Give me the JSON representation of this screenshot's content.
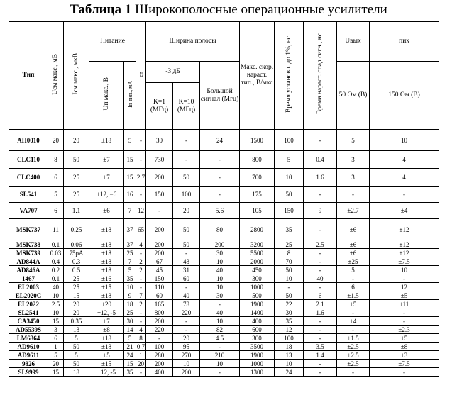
{
  "title": {
    "number": "Таблица 1",
    "text": "Широкополосные операционные усилители"
  },
  "headers": {
    "type": "Тип",
    "uoffset": "Uсм макс., мВ",
    "ioffset": "Iсм макс., мкВ",
    "supply_group": "Питание",
    "supply_voltage": "Uп макс., В",
    "supply_current": "Iп тип., мА",
    "en": "en",
    "bandwidth_group": "Ширина полосы",
    "minus3db": "-3 дБ",
    "k1": "K=1 (МГц)",
    "k10": "K=10 (МГц)",
    "large_signal": "Большой сигнал (Мгц)",
    "slew_rate": "Макс. скор. нараст. тип., В/мкс",
    "settling": "Время установл. до 1%, нс",
    "rise": "Время нараст. спад сигн., нс",
    "uout": "Uвых",
    "peak": "пик",
    "r50": "50 Ом (В)",
    "r150": "150 Ом (В)"
  },
  "rows": [
    [
      "AH0010",
      "20",
      "20",
      "±18",
      "5",
      "-",
      "30",
      "-",
      "24",
      "1500",
      "100",
      "-",
      "5",
      "10"
    ],
    [
      "CLC110",
      "8",
      "50",
      "±7",
      "15",
      "-",
      "730",
      "-",
      "-",
      "800",
      "5",
      "0.4",
      "3",
      "4"
    ],
    [
      "CLC400",
      "6",
      "25",
      "±7",
      "15",
      "2.7",
      "200",
      "50",
      "-",
      "700",
      "10",
      "1.6",
      "3",
      "4"
    ],
    [
      "SL541",
      "5",
      "25",
      "+12, −6",
      "16",
      "-",
      "150",
      "100",
      "-",
      "175",
      "50",
      "-",
      "-",
      "-"
    ],
    [
      "VA707",
      "6",
      "1.1",
      "±6",
      "7",
      "12",
      "-",
      "20",
      "5.6",
      "105",
      "150",
      "9",
      "±2.7",
      "±4"
    ],
    [
      "MSK737",
      "11",
      "0.25",
      "±18",
      "37",
      "65",
      "200",
      "50",
      "80",
      "2800",
      "35",
      "-",
      "±6",
      "±12"
    ],
    [
      "MSK738",
      "0.1",
      "0.06",
      "±18",
      "37",
      "4",
      "200",
      "50",
      "200",
      "3200",
      "25",
      "2.5",
      "±6",
      "±12"
    ],
    [
      "MSK739",
      "0.03",
      "75pA",
      "±18",
      "25",
      "-",
      "200",
      "-",
      "30",
      "5500",
      "8",
      "-",
      "±6",
      "±12"
    ],
    [
      "AD844A",
      "0.4",
      "0.3",
      "±18",
      "7",
      "2",
      "67",
      "43",
      "10",
      "2000",
      "70",
      "-",
      "±25",
      "±7.5"
    ],
    [
      "AD846A",
      "0.2",
      "0.5",
      "±18",
      "5",
      "2",
      "45",
      "31",
      "40",
      "450",
      "50",
      "-",
      "5",
      "10"
    ],
    [
      "1467",
      "0.1",
      "25",
      "±16",
      "35",
      "-",
      "150",
      "60",
      "10",
      "300",
      "10",
      "40",
      "-",
      "-"
    ],
    [
      "EL2003",
      "40",
      "25",
      "±15",
      "10",
      "-",
      "110",
      "-",
      "10",
      "1000",
      "-",
      "-",
      "6",
      "12"
    ],
    [
      "EL2020C",
      "10",
      "15",
      "±18",
      "9",
      "7",
      "60",
      "40",
      "30",
      "500",
      "50",
      "6",
      "±1.5",
      "±5"
    ],
    [
      "EL2022",
      "2.5",
      "20",
      "±20",
      "18",
      "2",
      "165",
      "78",
      "-",
      "1900",
      "22",
      "2.1",
      "±5",
      "±11"
    ],
    [
      "SL2541",
      "10",
      "20",
      "+12, -5",
      "25",
      "-",
      "800",
      "220",
      "40",
      "1400",
      "30",
      "1.6",
      "-",
      "-"
    ],
    [
      "CA3450",
      "15",
      "0.35",
      "±7",
      "30",
      "-",
      "200",
      "-",
      "10",
      "400",
      "35",
      "-",
      "±4",
      "-"
    ],
    [
      "AD5539S",
      "3",
      "13",
      "±8",
      "14",
      "4",
      "220",
      "-",
      "82",
      "600",
      "12",
      "-",
      "-",
      "±2.3"
    ],
    [
      "LM6364",
      "6",
      "5",
      "±18",
      "5",
      "8",
      "-",
      "20",
      "4.5",
      "300",
      "100",
      "-",
      "±1.5",
      "±5"
    ],
    [
      "AD9610",
      "1",
      "50",
      "±18",
      "21",
      "0.7",
      "100",
      "95",
      "-",
      "3500",
      "18",
      "3.5",
      "±2.5",
      "±8"
    ],
    [
      "AD9611",
      "5",
      "5",
      "±5",
      "24",
      "1",
      "280",
      "270",
      "210",
      "1900",
      "13",
      "1.4",
      "±2.5",
      "±3"
    ],
    [
      "9826",
      "20",
      "50",
      "±15",
      "15",
      "20",
      "200",
      "10",
      "10",
      "1000",
      "10",
      "-",
      "±2.5",
      "±7.5"
    ],
    [
      "SL9999",
      "15",
      "18",
      "+12, -5",
      "35",
      "-",
      "400",
      "200",
      "-",
      "1300",
      "24",
      "-",
      "-",
      "-"
    ]
  ]
}
